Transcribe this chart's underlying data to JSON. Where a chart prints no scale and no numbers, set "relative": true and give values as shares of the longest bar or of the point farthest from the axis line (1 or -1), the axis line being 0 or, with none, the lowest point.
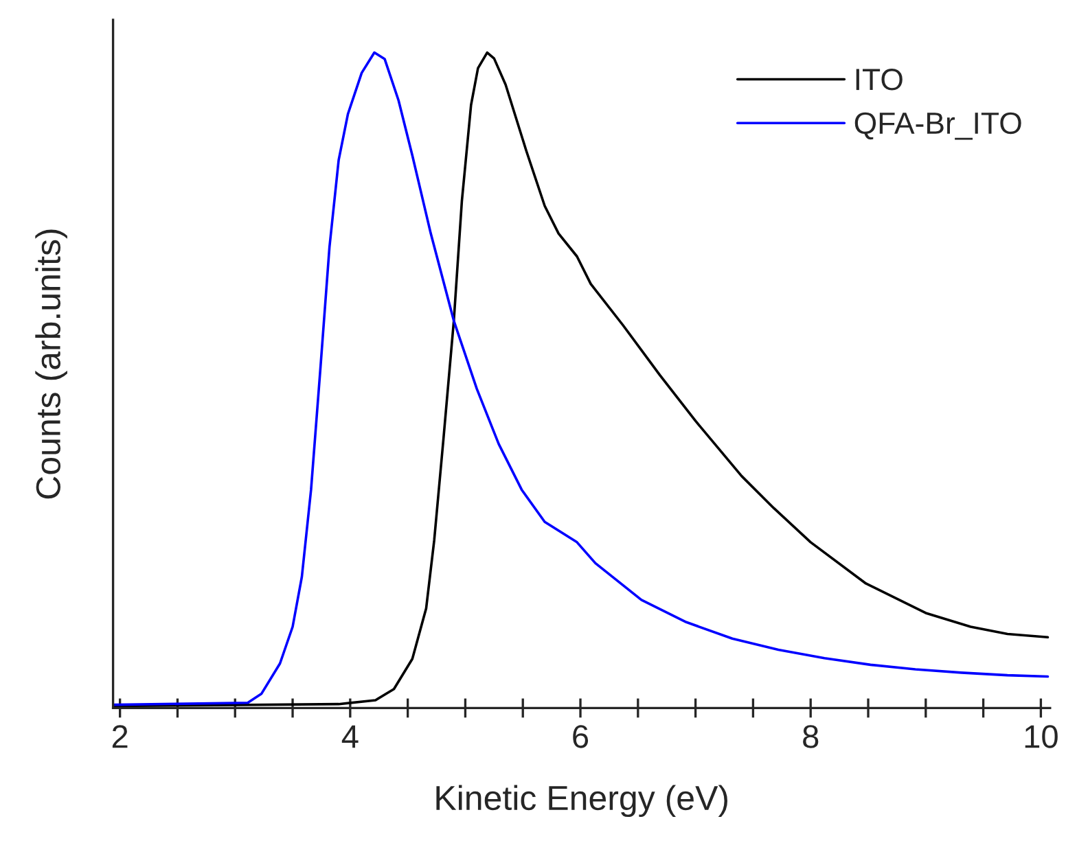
{
  "chart_data": {
    "type": "line",
    "relative": true,
    "xlabel": "Kinetic Energy (eV)",
    "ylabel": "Counts (arb.units)",
    "xlim": [
      1.94,
      10.08
    ],
    "xticks": [
      2,
      {
        "value": 2.5,
        "label": null
      },
      {
        "value": 3,
        "label": null
      },
      {
        "value": 3.5,
        "label": null
      },
      4,
      {
        "value": 4.5,
        "label": null
      },
      {
        "value": 5,
        "label": null
      },
      {
        "value": 5.5,
        "label": null
      },
      6,
      {
        "value": 6.5,
        "label": null
      },
      {
        "value": 7,
        "label": null
      },
      {
        "value": 7.5,
        "label": null
      },
      8,
      {
        "value": 8.5,
        "label": null
      },
      {
        "value": 9,
        "label": null
      },
      {
        "value": 9.5,
        "label": null
      },
      10
    ],
    "grid": false,
    "legend": "top right",
    "series": [
      {
        "name": "ITO",
        "color": "#000000",
        "x": [
          1.95,
          3.9,
          4.22,
          4.38,
          4.54,
          4.66,
          4.73,
          4.81,
          4.9,
          4.97,
          5.05,
          5.11,
          5.19,
          5.25,
          5.35,
          5.53,
          5.69,
          5.81,
          5.97,
          6.09,
          6.37,
          6.69,
          7.0,
          7.4,
          7.68,
          8.0,
          8.48,
          9.0,
          9.39,
          9.71,
          10.06
        ],
        "values": [
          0.003,
          0.006,
          0.012,
          0.029,
          0.075,
          0.152,
          0.256,
          0.41,
          0.59,
          0.773,
          0.92,
          0.976,
          1.0,
          0.991,
          0.951,
          0.85,
          0.766,
          0.724,
          0.689,
          0.647,
          0.584,
          0.508,
          0.438,
          0.354,
          0.305,
          0.253,
          0.19,
          0.145,
          0.124,
          0.113,
          0.108
        ]
      },
      {
        "name": "QFA-Br_ITO",
        "color": "#0000ff",
        "x": [
          1.95,
          3.11,
          3.23,
          3.39,
          3.5,
          3.58,
          3.66,
          3.74,
          3.82,
          3.9,
          3.98,
          4.1,
          4.21,
          4.3,
          4.42,
          4.54,
          4.7,
          4.9,
          5.1,
          5.29,
          5.49,
          5.69,
          5.97,
          6.13,
          6.53,
          6.92,
          7.32,
          7.72,
          8.12,
          8.52,
          8.91,
          9.31,
          9.71,
          10.06
        ],
        "values": [
          0.005,
          0.008,
          0.022,
          0.068,
          0.124,
          0.2,
          0.333,
          0.515,
          0.703,
          0.836,
          0.906,
          0.969,
          1.0,
          0.99,
          0.927,
          0.843,
          0.724,
          0.591,
          0.487,
          0.403,
          0.333,
          0.284,
          0.253,
          0.221,
          0.165,
          0.131,
          0.106,
          0.089,
          0.076,
          0.066,
          0.059,
          0.054,
          0.05,
          0.048
        ]
      }
    ]
  }
}
